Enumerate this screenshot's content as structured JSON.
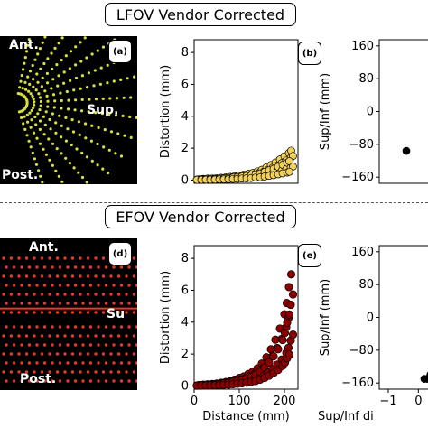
{
  "banners": {
    "top": "LFOV Vendor Corrected",
    "bottom": "EFOV Vendor Corrected"
  },
  "panel_tags": {
    "a": "(a)",
    "b": "(b)",
    "d": "(d)",
    "e": "(e)"
  },
  "image_labels": {
    "top": {
      "ant": "Ant.",
      "sup": "Sup.",
      "post": "Post."
    },
    "bottom": {
      "ant": "Ant.",
      "sup": "Su",
      "post": "Post."
    }
  },
  "colors": {
    "top_points": "#f2d15a",
    "bottom_points": "#8b0000",
    "image_bg": "#000000",
    "image_top_dots": "#d8e040",
    "image_bottom_dots": "#e03a2a"
  },
  "chart_data": [
    {
      "id": "b",
      "type": "scatter",
      "xlabel": "",
      "ylabel": "Distortion (mm)",
      "xlim": [
        0,
        230
      ],
      "ylim": [
        -0.2,
        8.8
      ],
      "yticks": [
        0,
        2,
        4,
        6,
        8
      ],
      "xticks": [],
      "series": [
        {
          "color": "#f2d15a",
          "values_desc": "",
          "x": [
            10,
            20,
            30,
            40,
            50,
            60,
            70,
            80,
            90,
            100,
            110,
            120,
            130,
            140,
            150,
            160,
            170,
            180,
            190,
            200,
            210,
            215
          ],
          "y": [
            0.05,
            0.08,
            0.1,
            0.1,
            0.12,
            0.15,
            0.18,
            0.2,
            0.25,
            0.3,
            0.35,
            0.4,
            0.45,
            0.55,
            0.65,
            0.8,
            0.95,
            1.1,
            1.3,
            1.5,
            1.7,
            1.85
          ]
        }
      ]
    },
    {
      "id": "c",
      "type": "scatter",
      "xlabel": "",
      "ylabel": "Sup/Inf (mm)",
      "xlim": [
        0,
        1
      ],
      "ylim": [
        -175,
        175
      ],
      "yticks": [
        160,
        80,
        0,
        -80,
        -160
      ],
      "xticks": [],
      "series": [
        {
          "x": [
            0.5
          ],
          "y": [
            -96
          ]
        }
      ]
    },
    {
      "id": "e",
      "type": "scatter",
      "xlabel": "Distance (mm)",
      "ylabel": "Distortion (mm)",
      "xlim": [
        0,
        230
      ],
      "ylim": [
        -0.2,
        8.8
      ],
      "yticks": [
        0,
        2,
        4,
        6,
        8
      ],
      "xticks": [
        0,
        100,
        200
      ],
      "series": [
        {
          "color": "#8b0000",
          "x": [
            10,
            20,
            30,
            40,
            50,
            60,
            70,
            80,
            90,
            100,
            110,
            120,
            130,
            140,
            150,
            160,
            170,
            180,
            190,
            200,
            205,
            210,
            215
          ],
          "y": [
            0.05,
            0.08,
            0.1,
            0.12,
            0.15,
            0.2,
            0.25,
            0.3,
            0.4,
            0.5,
            0.6,
            0.75,
            0.9,
            1.1,
            1.4,
            1.8,
            2.3,
            2.9,
            3.6,
            4.5,
            5.2,
            6.2,
            7.0
          ]
        }
      ]
    },
    {
      "id": "f",
      "type": "scatter",
      "xlabel": "Sup/Inf di",
      "ylabel": "Sup/Inf (mm)",
      "xlim": [
        -1.3,
        0.5
      ],
      "ylim": [
        -175,
        175
      ],
      "yticks": [
        160,
        80,
        0,
        -80,
        -160
      ],
      "xticks": [
        -1,
        0
      ],
      "series": [
        {
          "x": [
            0.2,
            0.3,
            0.35,
            0.4
          ],
          "y": [
            -150,
            -150,
            -148,
            -140
          ]
        }
      ]
    }
  ]
}
